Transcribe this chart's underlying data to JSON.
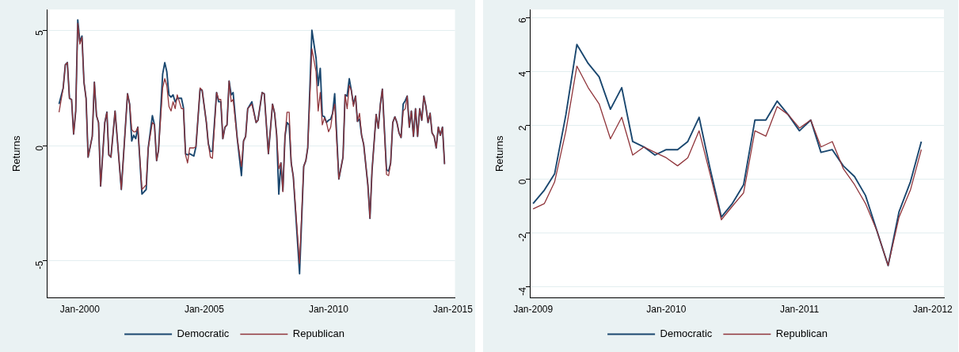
{
  "chart_data": [
    {
      "type": "line",
      "ylabel": "Returns",
      "x": [
        "1999-03",
        "1999-05",
        "1999-06",
        "1999-07",
        "1999-08",
        "1999-09",
        "1999-10",
        "1999-11",
        "1999-12",
        "2000-01",
        "2000-02",
        "2000-03",
        "2000-04",
        "2000-05",
        "2000-07",
        "2000-08",
        "2000-09",
        "2000-10",
        "2000-11",
        "2001-01",
        "2001-02",
        "2001-03",
        "2001-04",
        "2001-06",
        "2001-09",
        "2001-12",
        "2002-01",
        "2002-02",
        "2002-03",
        "2002-04",
        "2002-05",
        "2002-07",
        "2002-09",
        "2002-10",
        "2002-12",
        "2003-01",
        "2003-02",
        "2003-03",
        "2003-05",
        "2003-06",
        "2003-07",
        "2003-08",
        "2003-09",
        "2003-10",
        "2003-11",
        "2003-12",
        "2004-02",
        "2004-03",
        "2004-04",
        "2004-05",
        "2004-06",
        "2004-08",
        "2004-09",
        "2004-11",
        "2004-12",
        "2005-02",
        "2005-03",
        "2005-04",
        "2005-05",
        "2005-07",
        "2005-08",
        "2005-09",
        "2005-10",
        "2005-11",
        "2005-12",
        "2006-01",
        "2006-02",
        "2006-03",
        "2006-05",
        "2006-07",
        "2006-08",
        "2006-09",
        "2006-10",
        "2006-12",
        "2007-02",
        "2007-03",
        "2007-05",
        "2007-06",
        "2007-08",
        "2007-10",
        "2007-11",
        "2007-12",
        "2008-01",
        "2008-02",
        "2008-03",
        "2008-04",
        "2008-05",
        "2008-06",
        "2008-07",
        "2008-08",
        "2008-11",
        "2009-01",
        "2009-02",
        "2009-03",
        "2009-05",
        "2009-07",
        "2009-08",
        "2009-09",
        "2009-10",
        "2009-11",
        "2009-12",
        "2010-01",
        "2010-02",
        "2010-03",
        "2010-04",
        "2010-06",
        "2010-08",
        "2010-09",
        "2010-10",
        "2010-11",
        "2010-12",
        "2011-01",
        "2011-02",
        "2011-03",
        "2011-04",
        "2011-05",
        "2011-06",
        "2011-08",
        "2011-09",
        "2011-10",
        "2011-12",
        "2012-01",
        "2012-02",
        "2012-03",
        "2012-05",
        "2012-06",
        "2012-07",
        "2012-08",
        "2012-09",
        "2012-10",
        "2012-11",
        "2012-12",
        "2013-01",
        "2013-02",
        "2013-03",
        "2013-04",
        "2013-05",
        "2013-06",
        "2013-07",
        "2013-08",
        "2013-09",
        "2013-10",
        "2013-11",
        "2013-12",
        "2014-01",
        "2014-02",
        "2014-03",
        "2014-04",
        "2014-05",
        "2014-06",
        "2014-07",
        "2014-08",
        "2014-09"
      ],
      "series": [
        {
          "name": "Democratic",
          "color": "#1a476f",
          "values": [
            1.8,
            2.5,
            3.5,
            3.6,
            2.05,
            2.0,
            0.5,
            1.5,
            5.45,
            4.5,
            4.75,
            2.75,
            2.05,
            -0.5,
            0.4,
            2.75,
            1.3,
            1.0,
            -1.75,
            1.0,
            1.45,
            -0.4,
            -0.5,
            1.5,
            -1.9,
            2.25,
            1.8,
            0.2,
            0.45,
            0.3,
            0.8,
            -2.1,
            -1.9,
            -0.1,
            1.3,
            0.9,
            -0.65,
            -0.2,
            3.1,
            3.6,
            3.2,
            2.2,
            2.1,
            2.2,
            1.9,
            2.05,
            2.05,
            1.65,
            -0.35,
            -0.4,
            -0.35,
            -0.45,
            -0.05,
            2.45,
            2.4,
            1.0,
            0.1,
            -0.25,
            -0.25,
            2.3,
            1.9,
            1.9,
            0.3,
            0.8,
            0.9,
            2.8,
            2.2,
            2.3,
            0.3,
            -1.3,
            0.2,
            0.4,
            1.6,
            1.9,
            1.0,
            1.1,
            2.3,
            2.25,
            -0.35,
            1.8,
            1.4,
            0.45,
            -2.1,
            -0.75,
            -1.95,
            0.4,
            1.0,
            0.9,
            -0.75,
            -1.35,
            -5.55,
            -0.9,
            -0.65,
            -0.1,
            5.0,
            3.8,
            2.6,
            3.35,
            1.3,
            1.25,
            1.0,
            1.1,
            1.15,
            1.4,
            2.25,
            -1.45,
            -0.5,
            2.2,
            2.15,
            2.9,
            2.4,
            1.8,
            2.15,
            1.05,
            1.15,
            0.45,
            0.05,
            -1.7,
            -3.15,
            -1.1,
            1.35,
            0.75,
            1.8,
            2.45,
            -1.05,
            -1.1,
            -0.75,
            1.0,
            1.25,
            1.0,
            0.55,
            0.35,
            1.8,
            1.95,
            2.15,
            0.8,
            1.5,
            0.4,
            1.6,
            0.4,
            1.6,
            1.1,
            2.15,
            1.7,
            1.0,
            1.4,
            0.55,
            0.4,
            -0.1,
            0.8,
            0.45,
            0.8,
            -0.8
          ]
        },
        {
          "name": "Republican",
          "color": "#90353b",
          "values": [
            1.45,
            2.5,
            3.5,
            3.6,
            2.05,
            2.0,
            0.5,
            1.5,
            5.3,
            4.4,
            4.7,
            2.75,
            2.05,
            -0.5,
            0.4,
            2.75,
            1.3,
            1.0,
            -1.75,
            1.0,
            1.45,
            -0.4,
            -0.5,
            1.5,
            -1.9,
            2.25,
            1.8,
            0.7,
            0.6,
            0.6,
            0.8,
            -1.9,
            -1.7,
            -0.1,
            1.0,
            0.9,
            -0.65,
            -0.2,
            2.5,
            2.9,
            2.6,
            1.7,
            1.5,
            1.9,
            1.6,
            2.2,
            1.6,
            1.6,
            -0.4,
            -0.75,
            -0.1,
            -0.1,
            -0.05,
            2.5,
            2.4,
            1.0,
            0.1,
            -0.5,
            -0.55,
            2.3,
            2.0,
            2.0,
            0.3,
            0.8,
            0.9,
            2.8,
            1.9,
            2.0,
            0.3,
            -0.9,
            0.2,
            0.4,
            1.6,
            1.8,
            1.0,
            1.1,
            2.3,
            2.25,
            -0.35,
            1.8,
            1.4,
            0.45,
            -1.0,
            -0.75,
            -2.0,
            0.4,
            1.45,
            1.45,
            -0.75,
            -1.35,
            -5.1,
            -0.9,
            -0.65,
            -0.1,
            4.2,
            3.2,
            1.5,
            2.3,
            0.9,
            1.2,
            1.0,
            0.6,
            0.8,
            1.4,
            1.8,
            -1.45,
            -0.5,
            2.2,
            1.6,
            2.6,
            2.4,
            1.7,
            2.15,
            1.05,
            1.4,
            0.45,
            0.05,
            -1.7,
            -3.15,
            -1.1,
            1.35,
            0.75,
            1.8,
            2.45,
            -1.25,
            -1.3,
            -0.75,
            1.0,
            1.25,
            1.0,
            0.55,
            0.35,
            1.5,
            1.6,
            2.15,
            0.8,
            1.5,
            0.4,
            1.6,
            0.4,
            1.6,
            1.1,
            2.15,
            1.7,
            1.0,
            1.4,
            0.55,
            0.4,
            -0.1,
            0.8,
            0.45,
            0.8,
            -0.8
          ]
        }
      ],
      "xlim": [
        "1998-09",
        "2015-02"
      ],
      "xticks": [
        {
          "value": "2000-01",
          "label": "Jan-2000"
        },
        {
          "value": "2005-01",
          "label": "Jan-2005"
        },
        {
          "value": "2010-01",
          "label": "Jan-2010"
        },
        {
          "value": "2015-01",
          "label": "Jan-2015"
        }
      ],
      "ylim": [
        -6.6,
        5.9
      ],
      "yticks": [
        -5,
        0,
        5
      ],
      "grid": "y",
      "legend": "bottom",
      "marker": "none"
    },
    {
      "type": "line",
      "ylabel": "Returns",
      "x": [
        "2009-01",
        "2009-02",
        "2009-03",
        "2009-04",
        "2009-05",
        "2009-06",
        "2009-07",
        "2009-08",
        "2009-09",
        "2009-10",
        "2009-11",
        "2009-12",
        "2010-01",
        "2010-02",
        "2010-03",
        "2010-04",
        "2010-05",
        "2010-06",
        "2010-07",
        "2010-08",
        "2010-09",
        "2010-10",
        "2010-11",
        "2010-12",
        "2011-01",
        "2011-02",
        "2011-03",
        "2011-04",
        "2011-05",
        "2011-06",
        "2011-07",
        "2011-08",
        "2011-09",
        "2011-10",
        "2011-11",
        "2011-12"
      ],
      "series": [
        {
          "name": "Democratic",
          "color": "#1a476f",
          "values": [
            -0.9,
            -0.4,
            0.2,
            2.4,
            5.0,
            4.3,
            3.8,
            2.6,
            3.4,
            1.4,
            1.2,
            0.9,
            1.1,
            1.1,
            1.4,
            2.3,
            0.4,
            -1.4,
            -0.9,
            -0.2,
            2.2,
            2.2,
            2.9,
            2.4,
            1.8,
            2.2,
            1.0,
            1.1,
            0.5,
            0.1,
            -0.6,
            -1.9,
            -3.2,
            -1.2,
            -0.1,
            1.4
          ]
        },
        {
          "name": "Republican",
          "color": "#90353b",
          "values": [
            -1.1,
            -0.9,
            -0.1,
            1.8,
            4.2,
            3.4,
            2.8,
            1.5,
            2.3,
            0.9,
            1.2,
            1.0,
            0.8,
            0.5,
            0.8,
            1.8,
            0.2,
            -1.5,
            -1.0,
            -0.5,
            1.8,
            1.6,
            2.7,
            2.4,
            1.9,
            2.2,
            1.2,
            1.4,
            0.4,
            -0.2,
            -0.9,
            -1.9,
            -3.2,
            -1.4,
            -0.4,
            1.1
          ]
        }
      ],
      "xlim": [
        "2008-12-23",
        "2012-02-01"
      ],
      "xticks": [
        {
          "value": "2009-01",
          "label": "Jan-2009"
        },
        {
          "value": "2010-01",
          "label": "Jan-2010"
        },
        {
          "value": "2011-01",
          "label": "Jan-2011"
        },
        {
          "value": "2012-01",
          "label": "Jan-2012"
        }
      ],
      "ylim": [
        -4.4,
        6.3
      ],
      "yticks": [
        -4,
        -2,
        0,
        2,
        4,
        6
      ],
      "grid": "y",
      "legend": "bottom",
      "marker": "none"
    }
  ]
}
